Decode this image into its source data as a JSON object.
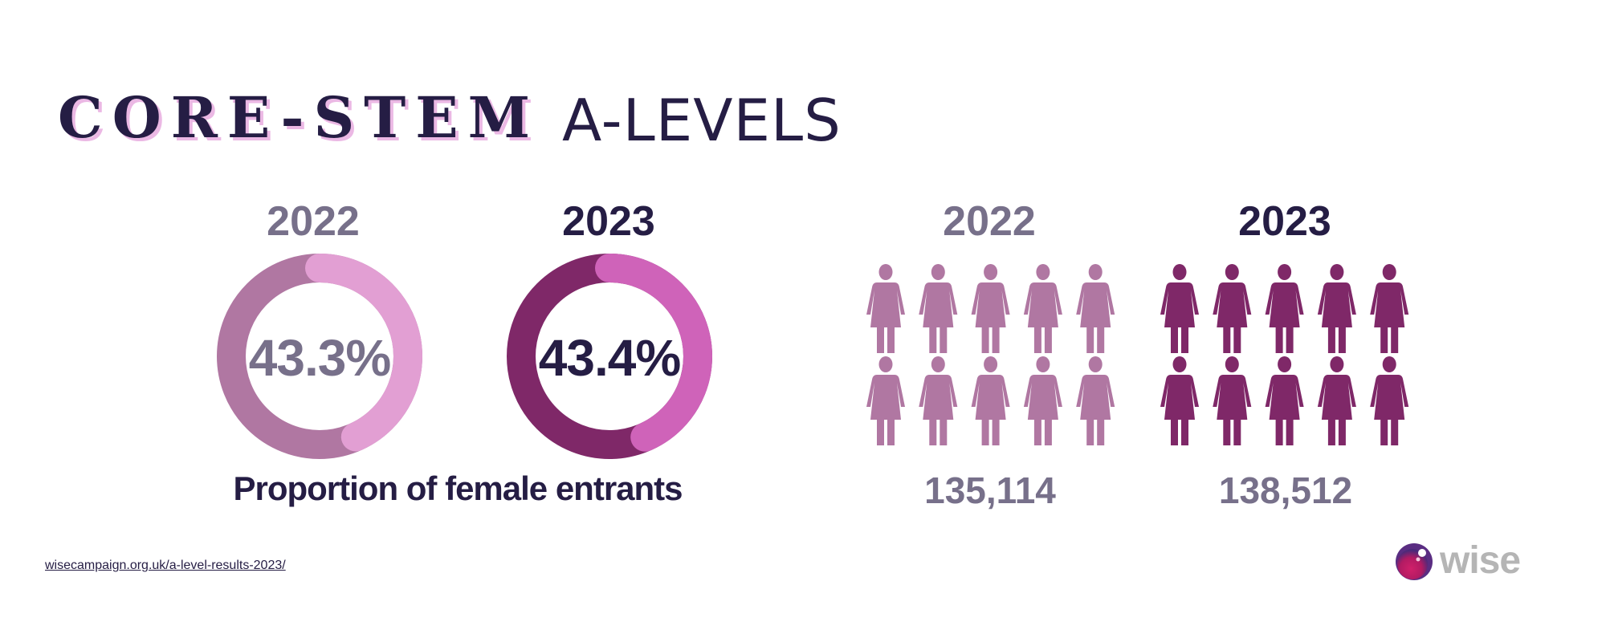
{
  "header": {
    "title_main": "CORE-STEM",
    "title_sub": "A-LEVELS"
  },
  "proportion": {
    "caption": "Proportion of female entrants",
    "items": [
      {
        "year": "2022",
        "label": "43.3%"
      },
      {
        "year": "2023",
        "label": "43.4%"
      }
    ]
  },
  "entrants": {
    "items": [
      {
        "year": "2022",
        "count": "135,114"
      },
      {
        "year": "2023",
        "count": "138,512"
      }
    ]
  },
  "footer": {
    "link": "wisecampaign.org.uk/a-level-results-2023/",
    "logo_text": "wise"
  },
  "colors": {
    "text_dark": "#251d44",
    "text_grey": "#77708a",
    "donut_2022_base": "#b077a2",
    "donut_2022_segment": "#e29fd3",
    "donut_2023_base": "#7f2868",
    "donut_2023_segment": "#cf63b9",
    "figure_2022": "#b077a2",
    "figure_2023": "#7f2868"
  },
  "chart_data": [
    {
      "type": "pie",
      "variant": "donut",
      "categories": [
        "2022",
        "2023"
      ],
      "values": [
        43.3,
        43.4
      ],
      "unit": "%",
      "title": "Proportion of female entrants"
    },
    {
      "type": "pictogram",
      "categories": [
        "2022",
        "2023"
      ],
      "values": [
        135114,
        138512
      ],
      "icon": "female-figure-icon"
    }
  ]
}
